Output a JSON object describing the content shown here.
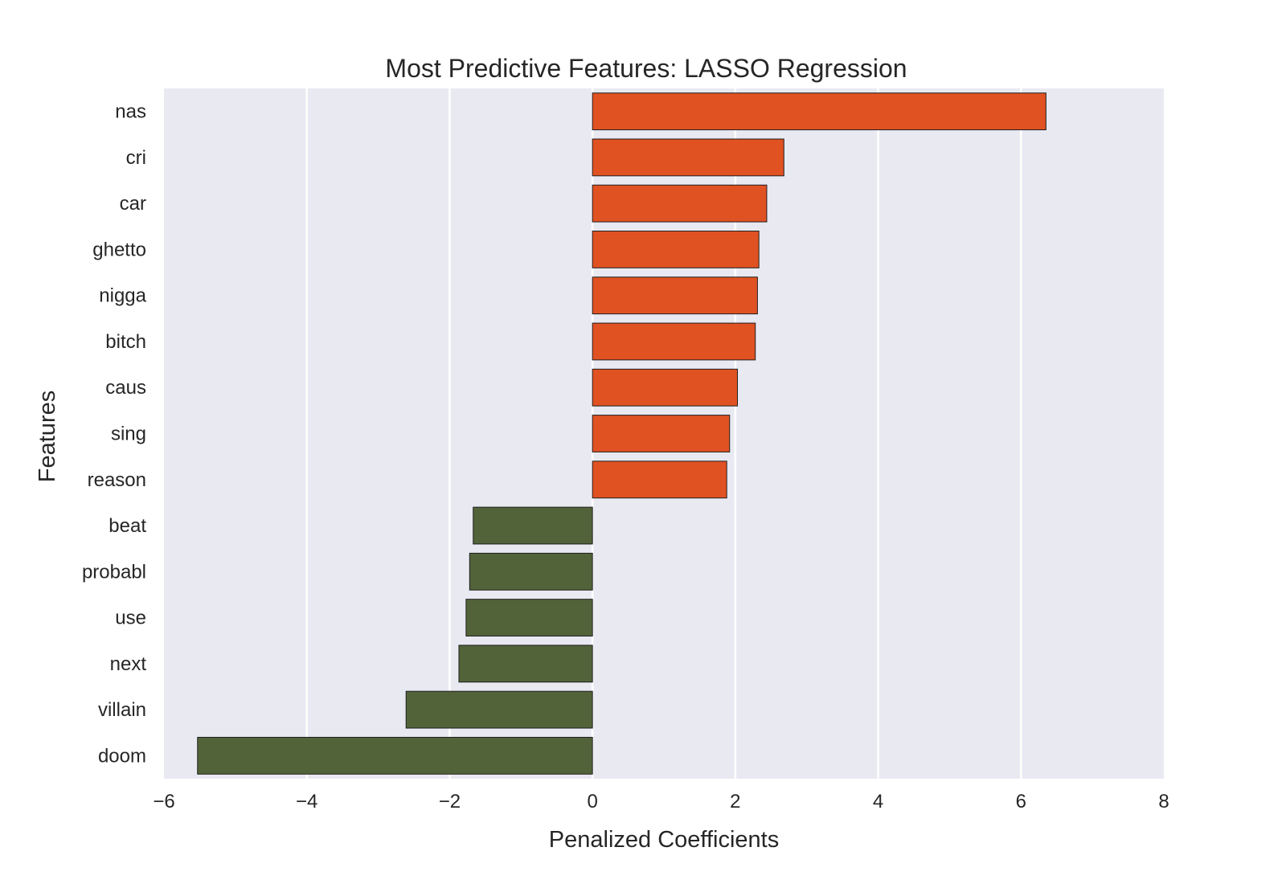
{
  "chart_data": {
    "type": "bar",
    "orientation": "horizontal",
    "title": "Most Predictive Features: LASSO Regression",
    "xlabel": "Penalized Coefficients",
    "ylabel": "Features",
    "xlim": [
      -6,
      8
    ],
    "xticks": [
      -6,
      -4,
      -2,
      0,
      2,
      4,
      6,
      8
    ],
    "xtick_labels": [
      "−6",
      "−4",
      "−2",
      "0",
      "2",
      "4",
      "6",
      "8"
    ],
    "grid": true,
    "categories": [
      "nas",
      "cri",
      "car",
      "ghetto",
      "nigga",
      "bitch",
      "caus",
      "sing",
      "reason",
      "beat",
      "probabl",
      "use",
      "next",
      "villain",
      "doom"
    ],
    "values": [
      6.35,
      2.68,
      2.44,
      2.33,
      2.31,
      2.28,
      2.03,
      1.92,
      1.88,
      -1.67,
      -1.72,
      -1.77,
      -1.87,
      -2.61,
      -5.53
    ],
    "colors": {
      "positive": "#e05222",
      "negative": "#526339"
    }
  }
}
